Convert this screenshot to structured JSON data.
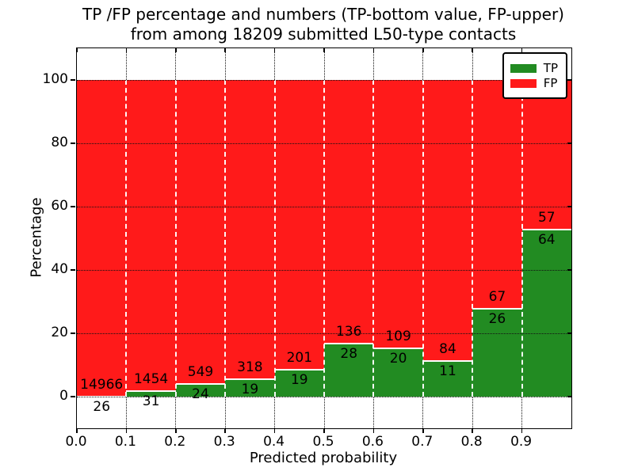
{
  "title_line1": "TP /FP percentage and numbers (TP-bottom value, FP-upper)",
  "title_line2": "from among 18209 submitted L50-type contacts",
  "total_contacts": "18209",
  "chart_data": {
    "type": "bar",
    "stacked": true,
    "normalized_to_percent": true,
    "title": "TP /FP percentage and numbers (TP-bottom value, FP-upper) from among 18209 submitted L50-type contacts",
    "xlabel": "Predicted probability",
    "ylabel": "Percentage",
    "bins": [
      "0.0-0.1",
      "0.1-0.2",
      "0.2-0.3",
      "0.3-0.4",
      "0.4-0.5",
      "0.5-0.6",
      "0.6-0.7",
      "0.7-0.8",
      "0.8-0.9",
      "0.9-1.0"
    ],
    "x_ticks": [
      "0.0",
      "0.1",
      "0.2",
      "0.3",
      "0.4",
      "0.5",
      "0.6",
      "0.7",
      "0.8",
      "0.9"
    ],
    "y_ticks": [
      0,
      20,
      40,
      60,
      80,
      100
    ],
    "xlim": [
      0.0,
      1.0
    ],
    "ylim": [
      -10,
      110
    ],
    "grid": true,
    "legend_position": "upper right",
    "series": [
      {
        "name": "TP",
        "color": "#228b22",
        "counts": [
          26,
          31,
          24,
          19,
          19,
          28,
          20,
          11,
          26,
          64
        ],
        "percent": [
          0.17,
          2.09,
          4.19,
          5.64,
          8.64,
          17.07,
          15.5,
          11.58,
          27.96,
          52.89
        ]
      },
      {
        "name": "FP",
        "color": "#ff1a1a",
        "counts": [
          14966,
          1454,
          549,
          318,
          201,
          136,
          109,
          84,
          67,
          57
        ],
        "percent": [
          99.83,
          97.91,
          95.81,
          94.36,
          91.36,
          82.93,
          84.5,
          88.42,
          72.04,
          47.11
        ]
      }
    ]
  }
}
